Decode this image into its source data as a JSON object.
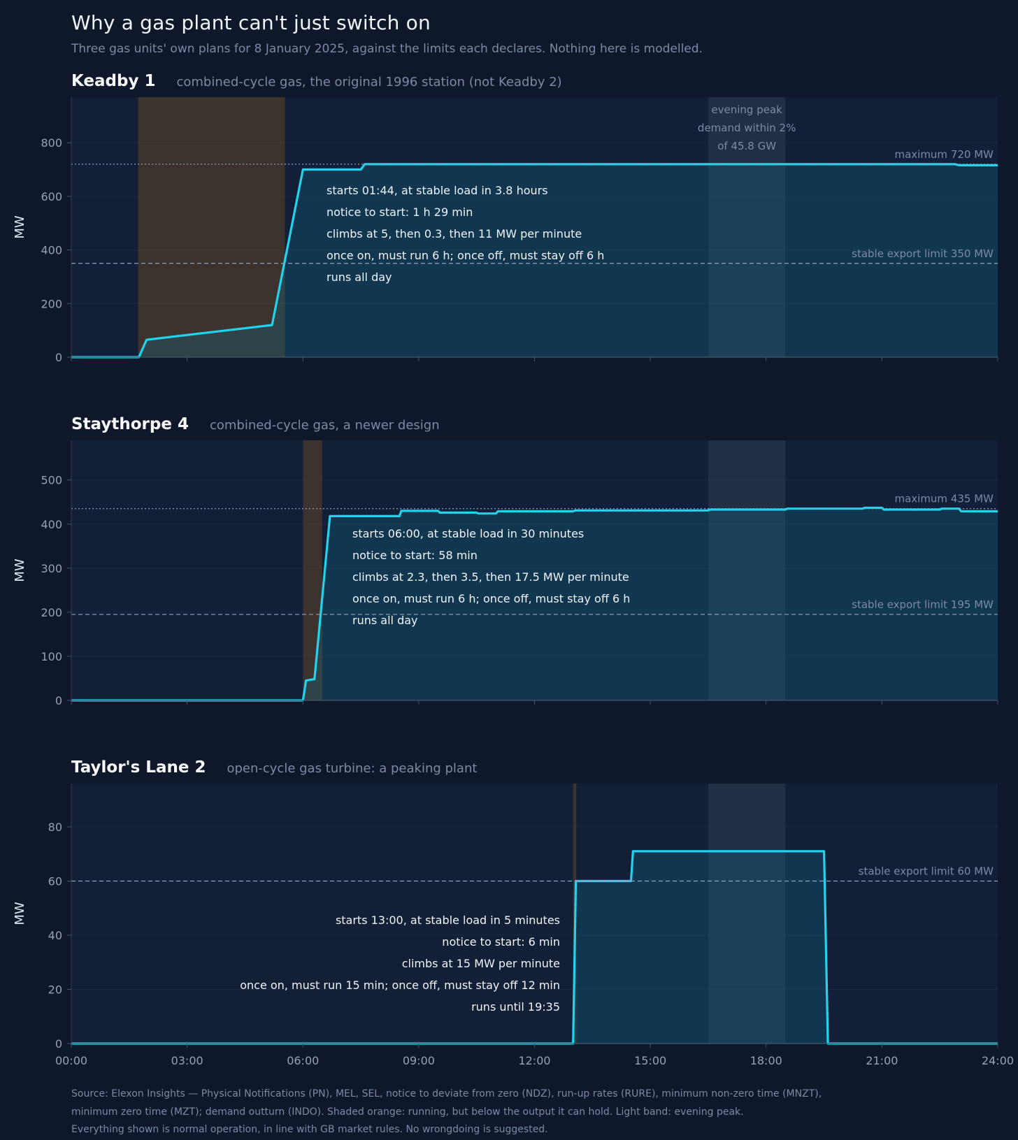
{
  "title": "Why a gas plant can't just switch on",
  "subtitle": "Three gas units' own plans for 8 January 2025, against the limits each declares. Nothing here is modelled.",
  "colors": {
    "background": "#0f172a",
    "line": "#22d3ee",
    "running_below_output": "#8a5a20",
    "evening_peak_band": "#334155"
  },
  "x_axis": {
    "ticks": [
      "00:00",
      "03:00",
      "06:00",
      "09:00",
      "12:00",
      "15:00",
      "18:00",
      "21:00",
      "24:00"
    ]
  },
  "chart_data": [
    {
      "type": "line",
      "name": "Keadby 1",
      "description": "combined-cycle gas, the original 1996 station (not Keadby 2)",
      "ylabel": "MW",
      "ylim": [
        0,
        970
      ],
      "yticks": [
        0,
        200,
        400,
        600,
        800
      ],
      "xlim": [
        0,
        24
      ],
      "x": [
        0,
        1.75,
        1.95,
        5.2,
        6.0,
        7.5,
        7.6,
        22.9,
        23.0,
        24
      ],
      "y": [
        0,
        0,
        65,
        120,
        700,
        700,
        720,
        720,
        716,
        716
      ],
      "max_limit": {
        "value": 720,
        "label": "maximum 720 MW"
      },
      "stable_limit": {
        "value": 350,
        "label": "stable export limit 350 MW"
      },
      "running_below_output": [
        1.733,
        5.533
      ],
      "evening_peak": {
        "range": [
          16.5,
          18.5
        ],
        "label": [
          "evening peak",
          "demand within 2%",
          "of 45.8 GW"
        ]
      },
      "notes_align": "left",
      "notes": [
        "starts 01:44, at stable load in 3.8 hours",
        "notice to start: 1 h 29 min",
        "climbs at 5, then 0.3, then 11 MW per minute",
        "once on, must run 6 h; once off, must stay off 6 h",
        "runs all day"
      ]
    },
    {
      "type": "line",
      "name": "Staythorpe 4",
      "description": "combined-cycle gas, a newer design",
      "ylabel": "MW",
      "ylim": [
        0,
        590
      ],
      "yticks": [
        0,
        100,
        200,
        300,
        400,
        500
      ],
      "xlim": [
        0,
        24
      ],
      "x": [
        0,
        6.0,
        6.08,
        6.3,
        6.7,
        8.5,
        8.55,
        9.5,
        9.55,
        10.5,
        10.55,
        11.0,
        11.05,
        13.0,
        13.05,
        16.5,
        16.55,
        18.5,
        18.55,
        20.5,
        20.55,
        21.0,
        21.05,
        22.5,
        22.55,
        23.0,
        23.05,
        24
      ],
      "y": [
        0,
        0,
        45,
        48,
        418,
        418,
        430,
        430,
        426,
        426,
        424,
        424,
        429,
        429,
        431,
        431,
        433,
        433,
        435,
        435,
        437,
        437,
        433,
        433,
        435,
        435,
        429,
        429
      ],
      "max_limit": {
        "value": 435,
        "label": "maximum 435 MW"
      },
      "stable_limit": {
        "value": 195,
        "label": "stable export limit 195 MW"
      },
      "running_below_output": [
        6.0,
        6.5
      ],
      "evening_peak": {
        "range": [
          16.5,
          18.5
        ],
        "label": []
      },
      "notes_align": "left",
      "notes": [
        "starts 06:00, at stable load in 30 minutes",
        "notice to start: 58 min",
        "climbs at 2.3, then 3.5, then 17.5 MW per minute",
        "once on, must run 6 h; once off, must stay off 6 h",
        "runs all day"
      ]
    },
    {
      "type": "line",
      "name": "Taylor's Lane 2",
      "description": "open-cycle gas turbine: a peaking plant",
      "ylabel": "MW",
      "ylim": [
        0,
        96
      ],
      "yticks": [
        0,
        20,
        40,
        60,
        80
      ],
      "xlim": [
        0,
        24
      ],
      "x": [
        0,
        13.0,
        13.07,
        14.5,
        14.55,
        19.5,
        19.6,
        24
      ],
      "y": [
        0,
        0,
        60,
        60,
        71,
        71,
        0,
        0
      ],
      "max_limit": null,
      "stable_limit": {
        "value": 60,
        "label": "stable export limit 60 MW"
      },
      "running_below_output": [
        13.0,
        13.083
      ],
      "evening_peak": {
        "range": [
          16.5,
          18.5
        ],
        "label": []
      },
      "notes_align": "right",
      "notes": [
        "starts 13:00, at stable load in 5 minutes",
        "notice to start: 6 min",
        "climbs at 15 MW per minute",
        "once on, must run 15 min; once off, must stay off 12 min",
        "runs until 19:35"
      ]
    }
  ],
  "source": [
    "Source: Elexon Insights — Physical Notifications (PN), MEL, SEL, notice to deviate from zero (NDZ), run-up rates (RURE), minimum non-zero time (MNZT),",
    "minimum zero time (MZT); demand outturn (INDO). Shaded orange: running, but below the output it can hold. Light band: evening peak.",
    "Everything shown is normal operation, in line with GB market rules. No wrongdoing is suggested."
  ]
}
